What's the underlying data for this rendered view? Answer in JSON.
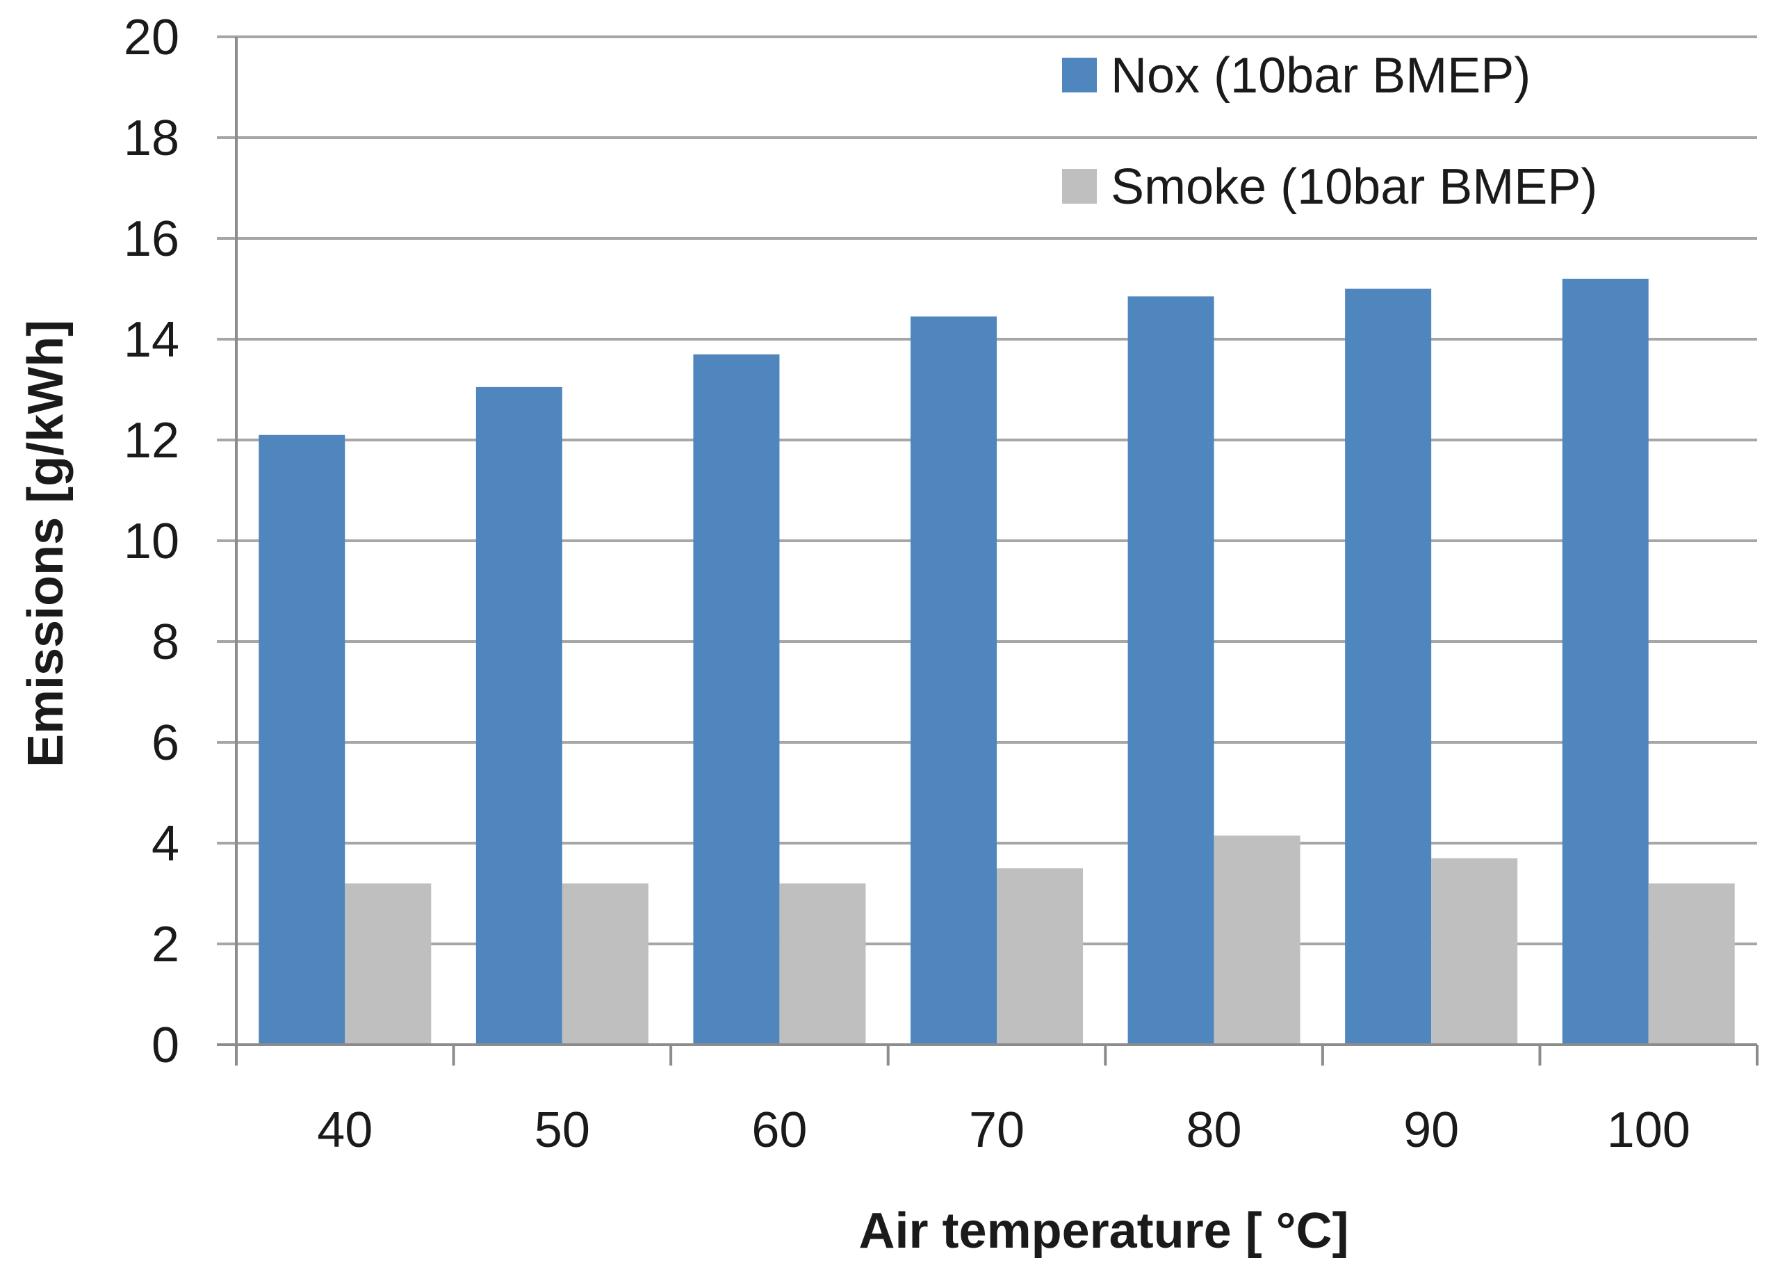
{
  "chart_data": {
    "type": "bar",
    "title": "",
    "xlabel": "Air temperature [ °C]",
    "ylabel": "Emissions [g/kWh]",
    "categories": [
      "40",
      "50",
      "60",
      "70",
      "80",
      "90",
      "100"
    ],
    "ylim": [
      0,
      20
    ],
    "yticks": [
      "0",
      "2",
      "4",
      "6",
      "8",
      "10",
      "12",
      "14",
      "16",
      "18",
      "20"
    ],
    "grid": "horizontal",
    "legend_position": "top-right",
    "series": [
      {
        "name": "Nox (10bar BMEP)",
        "color": "#4f86bd",
        "values": [
          12.1,
          13.05,
          13.7,
          14.45,
          14.85,
          15.0,
          15.2
        ]
      },
      {
        "name": "Smoke (10bar BMEP)",
        "color": "#bfbfbf",
        "values": [
          3.2,
          3.2,
          3.2,
          3.5,
          4.15,
          3.7,
          3.2
        ]
      }
    ]
  }
}
